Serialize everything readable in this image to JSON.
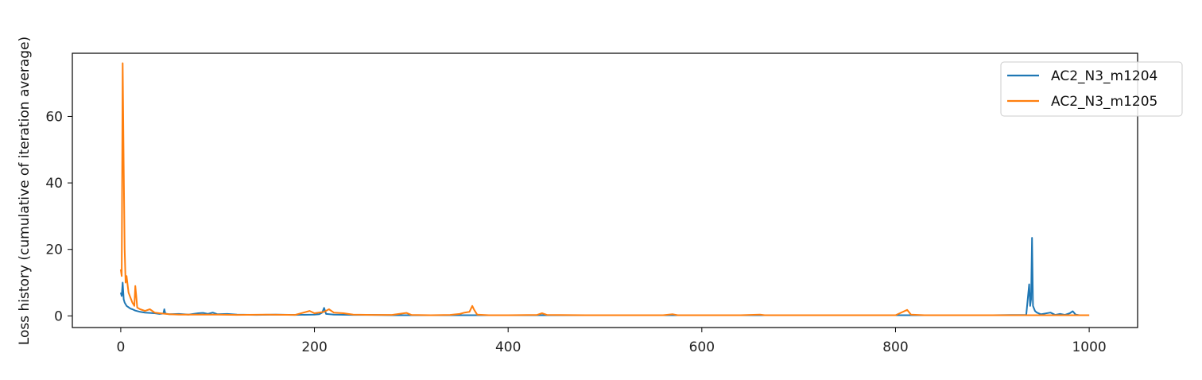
{
  "chart_data": {
    "type": "line",
    "title": "",
    "xlabel": "",
    "ylabel": "Loss history (cumulative of iteration average)",
    "xlim": [
      -50,
      1050
    ],
    "ylim": [
      -3.5,
      79
    ],
    "xticks": [
      0,
      200,
      400,
      600,
      800,
      1000
    ],
    "yticks": [
      0,
      20,
      40,
      60
    ],
    "grid": false,
    "legend_position": "top-right",
    "series": [
      {
        "name": "AC2_N3_m1204",
        "color": "#1f77b4",
        "points": [
          [
            0,
            7
          ],
          [
            1,
            6
          ],
          [
            2,
            10
          ],
          [
            3,
            5
          ],
          [
            4,
            4
          ],
          [
            6,
            3
          ],
          [
            8,
            2.6
          ],
          [
            10,
            2.2
          ],
          [
            12,
            2
          ],
          [
            15,
            1.6
          ],
          [
            20,
            1.2
          ],
          [
            25,
            1
          ],
          [
            30,
            0.9
          ],
          [
            35,
            0.8
          ],
          [
            40,
            0.6
          ],
          [
            44,
            0.7
          ],
          [
            45,
            2
          ],
          [
            46,
            0.7
          ],
          [
            50,
            0.5
          ],
          [
            60,
            0.6
          ],
          [
            70,
            0.4
          ],
          [
            80,
            0.8
          ],
          [
            85,
            0.9
          ],
          [
            90,
            0.6
          ],
          [
            95,
            1
          ],
          [
            100,
            0.5
          ],
          [
            110,
            0.6
          ],
          [
            120,
            0.4
          ],
          [
            140,
            0.3
          ],
          [
            160,
            0.4
          ],
          [
            180,
            0.3
          ],
          [
            200,
            0.4
          ],
          [
            205,
            0.5
          ],
          [
            208,
            1
          ],
          [
            210,
            2.4
          ],
          [
            212,
            0.6
          ],
          [
            220,
            0.4
          ],
          [
            240,
            0.3
          ],
          [
            260,
            0.3
          ],
          [
            280,
            0.2
          ],
          [
            300,
            0.2
          ],
          [
            350,
            0.2
          ],
          [
            400,
            0.2
          ],
          [
            450,
            0.2
          ],
          [
            500,
            0.2
          ],
          [
            550,
            0.2
          ],
          [
            600,
            0.2
          ],
          [
            650,
            0.2
          ],
          [
            700,
            0.2
          ],
          [
            750,
            0.2
          ],
          [
            800,
            0.2
          ],
          [
            850,
            0.2
          ],
          [
            900,
            0.2
          ],
          [
            935,
            0.3
          ],
          [
            938,
            9.5
          ],
          [
            939,
            3
          ],
          [
            940,
            5
          ],
          [
            941,
            23.5
          ],
          [
            942,
            3
          ],
          [
            944,
            1.5
          ],
          [
            946,
            1
          ],
          [
            950,
            0.5
          ],
          [
            960,
            1
          ],
          [
            965,
            0.3
          ],
          [
            970,
            0.6
          ],
          [
            975,
            0.3
          ],
          [
            980,
            0.8
          ],
          [
            983,
            1.4
          ],
          [
            986,
            0.4
          ],
          [
            990,
            0.2
          ],
          [
            1000,
            0.2
          ]
        ]
      },
      {
        "name": "AC2_N3_m1205",
        "color": "#ff7f0e",
        "points": [
          [
            0,
            14
          ],
          [
            1,
            12
          ],
          [
            2,
            76
          ],
          [
            3,
            45
          ],
          [
            4,
            20
          ],
          [
            5,
            10
          ],
          [
            6,
            12
          ],
          [
            8,
            7
          ],
          [
            10,
            5.5
          ],
          [
            12,
            4
          ],
          [
            14,
            3
          ],
          [
            15,
            9
          ],
          [
            16,
            6
          ],
          [
            17,
            2.5
          ],
          [
            20,
            2
          ],
          [
            25,
            1.5
          ],
          [
            30,
            2
          ],
          [
            35,
            1
          ],
          [
            40,
            0.8
          ],
          [
            50,
            0.5
          ],
          [
            60,
            0.4
          ],
          [
            80,
            0.4
          ],
          [
            100,
            0.4
          ],
          [
            120,
            0.3
          ],
          [
            150,
            0.4
          ],
          [
            180,
            0.3
          ],
          [
            195,
            1.5
          ],
          [
            200,
            0.8
          ],
          [
            210,
            1.2
          ],
          [
            215,
            2
          ],
          [
            220,
            1
          ],
          [
            230,
            0.8
          ],
          [
            240,
            0.4
          ],
          [
            260,
            0.3
          ],
          [
            280,
            0.3
          ],
          [
            295,
            0.9
          ],
          [
            300,
            0.3
          ],
          [
            320,
            0.2
          ],
          [
            340,
            0.3
          ],
          [
            350,
            0.6
          ],
          [
            355,
            1
          ],
          [
            360,
            1.2
          ],
          [
            363,
            3
          ],
          [
            365,
            1.8
          ],
          [
            368,
            0.4
          ],
          [
            380,
            0.2
          ],
          [
            400,
            0.2
          ],
          [
            430,
            0.3
          ],
          [
            435,
            0.8
          ],
          [
            440,
            0.3
          ],
          [
            480,
            0.2
          ],
          [
            520,
            0.2
          ],
          [
            560,
            0.2
          ],
          [
            570,
            0.5
          ],
          [
            575,
            0.2
          ],
          [
            600,
            0.2
          ],
          [
            640,
            0.2
          ],
          [
            660,
            0.4
          ],
          [
            665,
            0.2
          ],
          [
            700,
            0.2
          ],
          [
            750,
            0.2
          ],
          [
            800,
            0.2
          ],
          [
            812,
            1.8
          ],
          [
            816,
            0.4
          ],
          [
            830,
            0.2
          ],
          [
            870,
            0.2
          ],
          [
            900,
            0.2
          ],
          [
            950,
            0.2
          ],
          [
            1000,
            0.2
          ]
        ]
      }
    ]
  }
}
